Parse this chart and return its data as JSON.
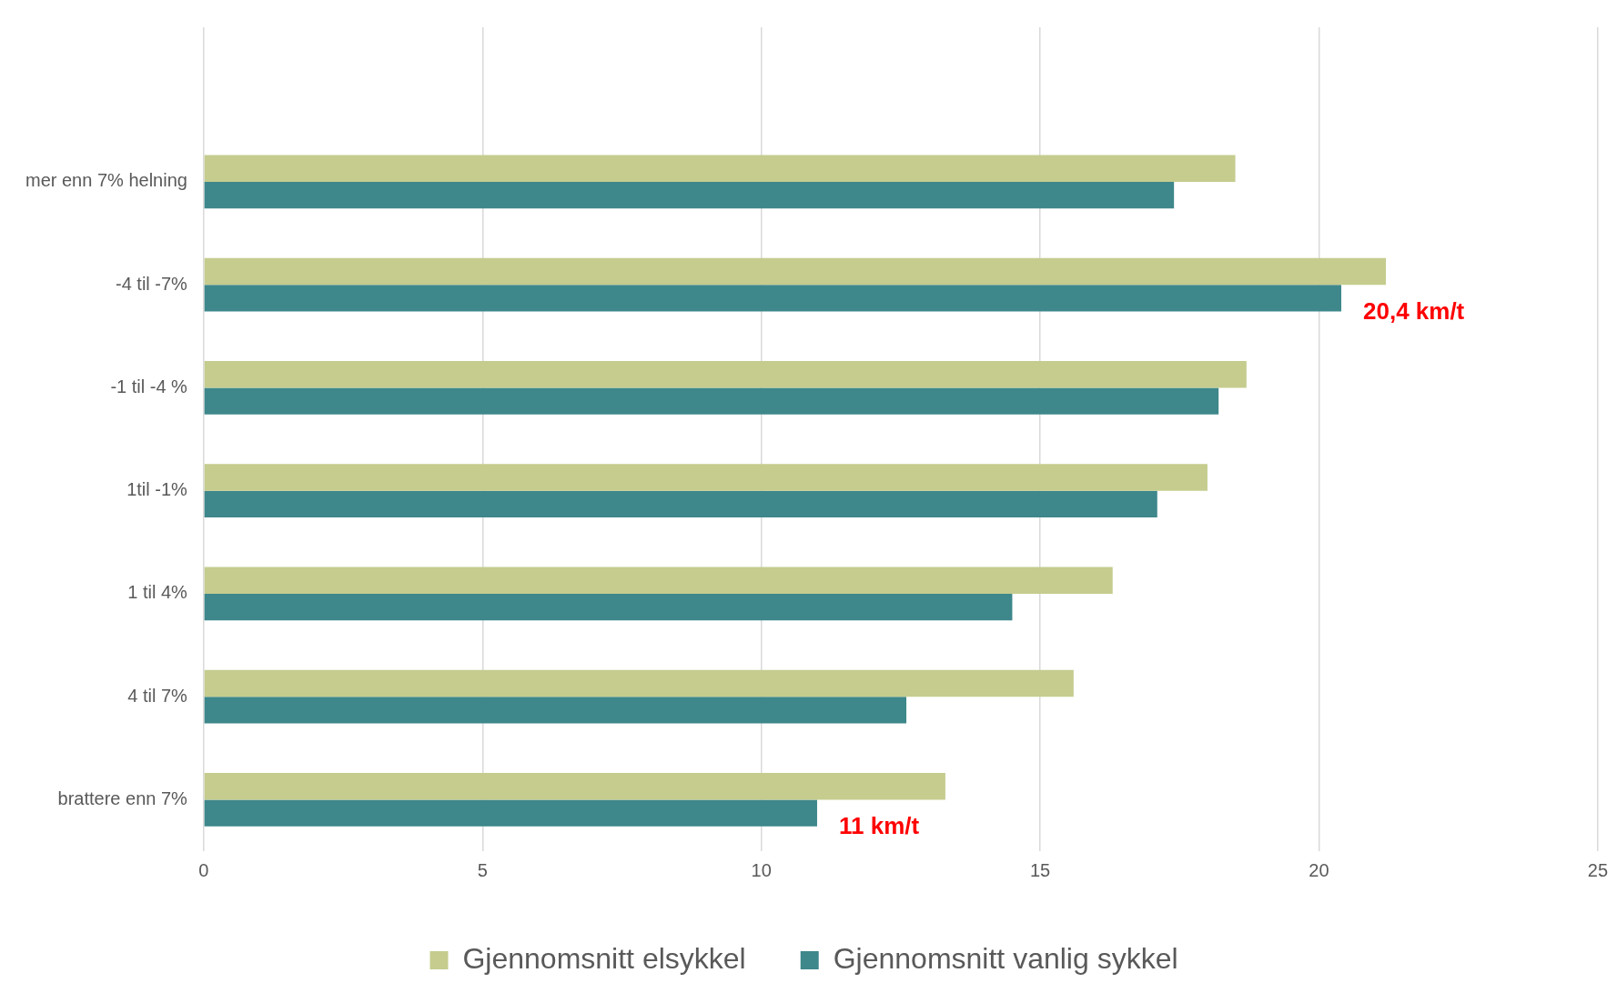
{
  "chart_data": {
    "type": "bar",
    "orientation": "horizontal",
    "categories": [
      null,
      "mer enn 7% helning",
      "-4 til -7%",
      "-1 til -4 %",
      "1til -1%",
      "1 til 4%",
      "4 til 7%",
      "brattere enn 7%"
    ],
    "series": [
      {
        "name": "Gjennomsnitt elsykkel",
        "color": "#c5cc8e",
        "values": [
          null,
          18.5,
          21.2,
          18.7,
          18.0,
          16.3,
          15.6,
          13.3
        ]
      },
      {
        "name": "Gjennomsnitt vanlig sykkel",
        "color": "#3e878b",
        "values": [
          null,
          17.4,
          20.4,
          18.2,
          17.1,
          14.5,
          12.6,
          11.0
        ]
      }
    ],
    "xlim": [
      0,
      25
    ],
    "xticks": [
      0,
      5,
      10,
      15,
      20,
      25
    ],
    "grid": "x",
    "legend": "bottom",
    "annotations": [
      {
        "text": "20,4 km/t",
        "x": 20.4,
        "y": "-4 til -7%"
      },
      {
        "text": "11 km/t",
        "x": 11,
        "y": "brattere enn 7%"
      }
    ]
  }
}
